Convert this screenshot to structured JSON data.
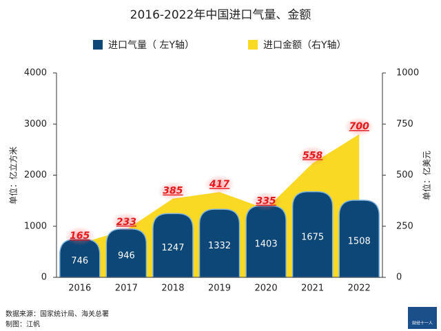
{
  "chart_data": {
    "type": "bar",
    "title": "2016-2022年中国进口气量、金额",
    "categories": [
      "2016",
      "2017",
      "2018",
      "2019",
      "2020",
      "2021",
      "2022"
    ],
    "series": [
      {
        "name": "进口气量（ 左Y轴）",
        "color": "#0c4777",
        "values": [
          746,
          946,
          1247,
          1332,
          1403,
          1675,
          1508
        ]
      },
      {
        "name": "进口金额（右Y轴）",
        "color": "#f9d923",
        "axis": "y2",
        "values": [
          165,
          233,
          385,
          417,
          335,
          558,
          700
        ]
      }
    ],
    "ylim": [
      0,
      4000
    ],
    "yticks": [
      0,
      1000,
      2000,
      3000,
      4000
    ],
    "y2lim": [
      0,
      1000
    ],
    "y2ticks": [
      0,
      250,
      500,
      750,
      1000
    ],
    "ylabel": "单位：亿立方米",
    "y2label": "单位：亿美元",
    "source": "数据来源：国家统计局、海关总署",
    "credit": "制图：江帆",
    "logo": "财经十一人"
  }
}
